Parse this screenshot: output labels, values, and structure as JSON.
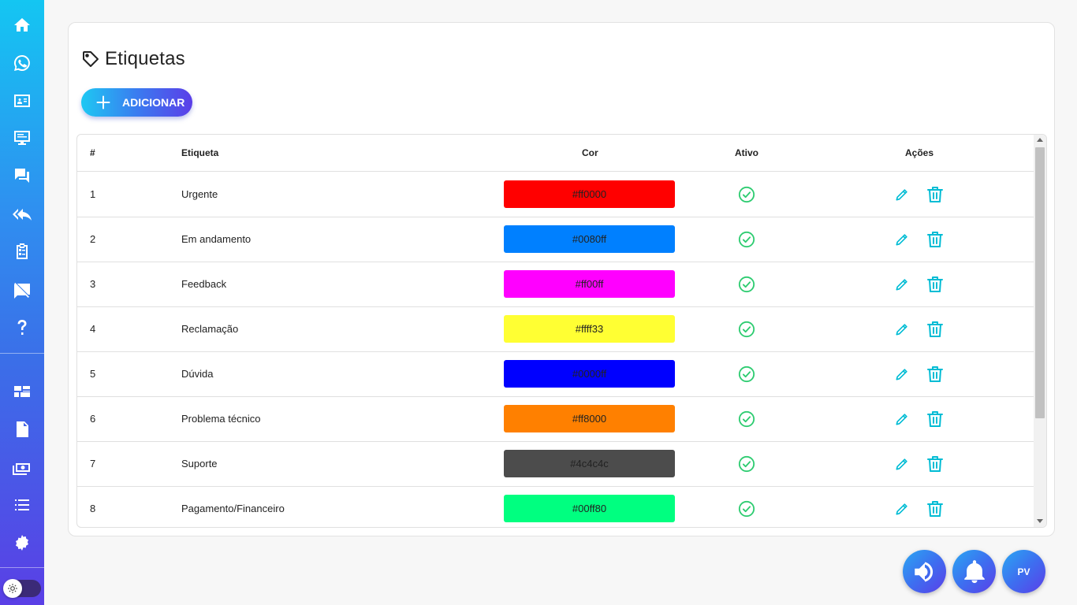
{
  "sidebar": {
    "items": [
      {
        "name": "home-icon"
      },
      {
        "name": "whatsapp-icon"
      },
      {
        "name": "contacts-icon"
      },
      {
        "name": "monitor-icon"
      },
      {
        "name": "chat-icon"
      },
      {
        "name": "reply-all-icon"
      },
      {
        "name": "clipboard-icon"
      },
      {
        "name": "message-off-icon"
      },
      {
        "name": "help-icon"
      },
      {
        "name": "dashboard-icon"
      },
      {
        "name": "report-icon"
      },
      {
        "name": "money-icon"
      },
      {
        "name": "list-icon"
      },
      {
        "name": "settings-icon"
      }
    ]
  },
  "page": {
    "title": "Etiquetas",
    "add_label": "ADICIONAR"
  },
  "table": {
    "headers": [
      "#",
      "Etiqueta",
      "Cor",
      "Ativo",
      "Ações"
    ],
    "rows": [
      {
        "id": "1",
        "name": "Urgente",
        "color": "#ff0000",
        "active": true
      },
      {
        "id": "2",
        "name": "Em andamento",
        "color": "#0080ff",
        "active": true
      },
      {
        "id": "3",
        "name": "Feedback",
        "color": "#ff00ff",
        "active": true
      },
      {
        "id": "4",
        "name": "Reclamação",
        "color": "#ffff33",
        "active": true
      },
      {
        "id": "5",
        "name": "Dúvida",
        "color": "#0000ff",
        "active": true
      },
      {
        "id": "6",
        "name": "Problema técnico",
        "color": "#ff8000",
        "active": true
      },
      {
        "id": "7",
        "name": "Suporte",
        "color": "#4c4c4c",
        "active": true
      },
      {
        "id": "8",
        "name": "Pagamento/Financeiro",
        "color": "#00ff80",
        "active": true
      }
    ]
  },
  "fabs": {
    "user_initials": "PV"
  },
  "colors": {
    "accent": "#00bcd4",
    "check": "#2ecc71"
  }
}
